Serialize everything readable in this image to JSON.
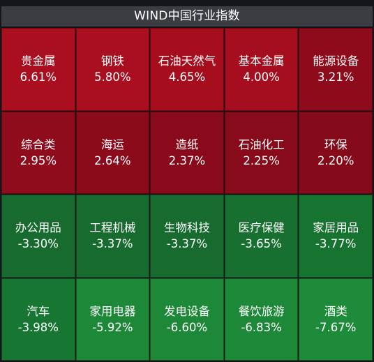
{
  "title": "WIND中国行业指数",
  "tiles": [
    {
      "name": "贵金属",
      "pct": "6.61%",
      "color": "#a90f1f"
    },
    {
      "name": "钢铁",
      "pct": "5.80%",
      "color": "#a90f1f"
    },
    {
      "name": "石油天然气",
      "pct": "4.65%",
      "color": "#a60e1e"
    },
    {
      "name": "基本金属",
      "pct": "4.00%",
      "color": "#a50e1e"
    },
    {
      "name": "能源设备",
      "pct": "3.21%",
      "color": "#8d0b1a"
    },
    {
      "name": "综合类",
      "pct": "2.95%",
      "color": "#8f0c1c"
    },
    {
      "name": "海运",
      "pct": "2.64%",
      "color": "#8b0b1b"
    },
    {
      "name": "造纸",
      "pct": "2.37%",
      "color": "#890b1b"
    },
    {
      "name": "石油化工",
      "pct": "2.25%",
      "color": "#870b1a"
    },
    {
      "name": "环保",
      "pct": "2.20%",
      "color": "#860b1a"
    },
    {
      "name": "办公用品",
      "pct": "-3.30%",
      "color": "#176b2e"
    },
    {
      "name": "工程机械",
      "pct": "-3.37%",
      "color": "#176b2e"
    },
    {
      "name": "生物科技",
      "pct": "-3.37%",
      "color": "#176b2e"
    },
    {
      "name": "医疗保健",
      "pct": "-3.65%",
      "color": "#17702f"
    },
    {
      "name": "家居用品",
      "pct": "-3.77%",
      "color": "#177330"
    },
    {
      "name": "汽车",
      "pct": "-3.98%",
      "color": "#177631"
    },
    {
      "name": "家用电器",
      "pct": "-5.92%",
      "color": "#1c8838"
    },
    {
      "name": "发电设备",
      "pct": "-6.60%",
      "color": "#1c8838"
    },
    {
      "name": "餐饮旅游",
      "pct": "-6.83%",
      "color": "#1c8838"
    },
    {
      "name": "酒类",
      "pct": "-7.67%",
      "color": "#1d8b39"
    }
  ]
}
